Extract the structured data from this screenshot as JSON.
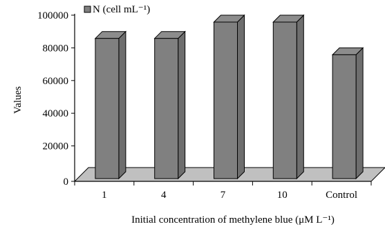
{
  "chart_data": {
    "type": "bar",
    "categories": [
      "1",
      "4",
      "7",
      "10",
      "Control"
    ],
    "series": [
      {
        "name": "N (cell mL⁻¹)",
        "values": [
          90000,
          90000,
          100000,
          100000,
          80000
        ]
      }
    ],
    "xlabel": "Initial concentration of methylene blue (μM L⁻¹)",
    "ylabel": "Values",
    "ylim": [
      0,
      100000
    ],
    "yticks": [
      0,
      20000,
      40000,
      60000,
      80000,
      100000
    ],
    "ytick_labels": [
      "0",
      "20000",
      "40000",
      "60000",
      "80000",
      "100000"
    ],
    "grid": false,
    "legend_position": "top-left",
    "bar_color": "#808080",
    "floor_color": "#c0c0c0"
  }
}
